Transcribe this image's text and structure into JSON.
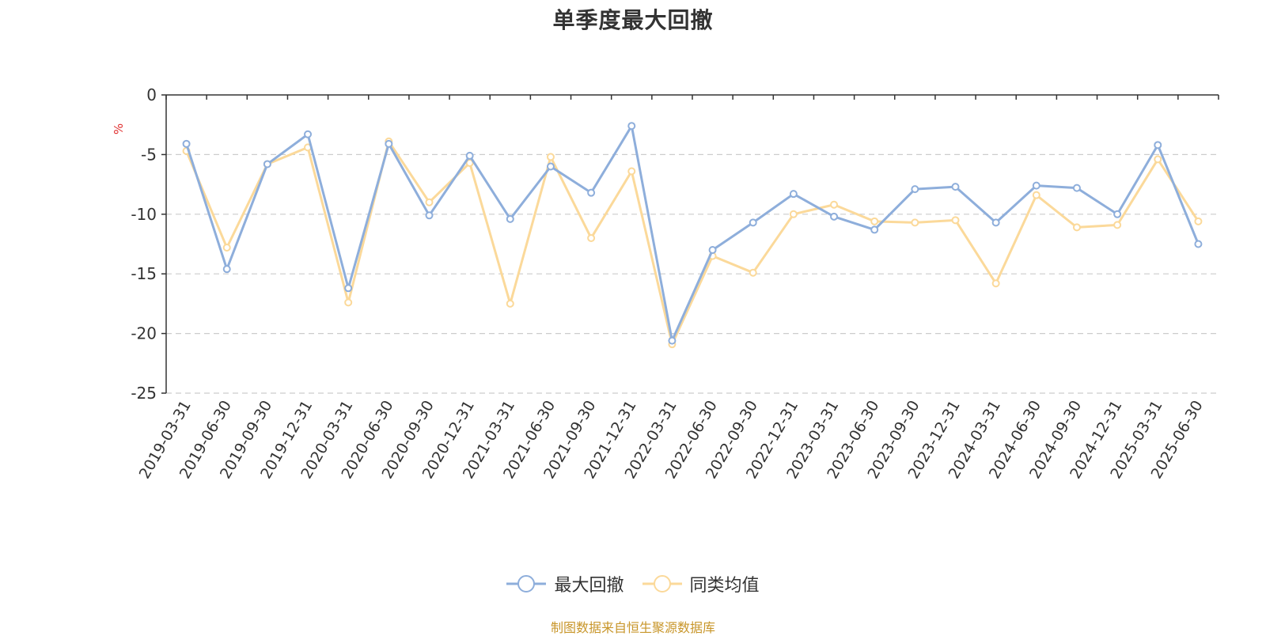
{
  "chart_data": {
    "type": "line",
    "title": "单季度最大回撤",
    "ylabel": "%",
    "ylim": [
      -25,
      0
    ],
    "yticks": [
      0,
      -5,
      -10,
      -15,
      -20,
      -25
    ],
    "grid": true,
    "legend_position": "bottom",
    "categories": [
      "2019-03-31",
      "2019-06-30",
      "2019-09-30",
      "2019-12-31",
      "2020-03-31",
      "2020-06-30",
      "2020-09-30",
      "2020-12-31",
      "2021-03-31",
      "2021-06-30",
      "2021-09-30",
      "2021-12-31",
      "2022-03-31",
      "2022-06-30",
      "2022-09-30",
      "2022-12-31",
      "2023-03-31",
      "2023-06-30",
      "2023-09-30",
      "2023-12-31",
      "2024-03-31",
      "2024-06-30",
      "2024-09-30",
      "2024-12-31",
      "2025-03-31",
      "2025-06-30"
    ],
    "series": [
      {
        "name": "最大回撤",
        "color": "#8eaedb",
        "values": [
          -4.1,
          -14.6,
          -5.8,
          -3.3,
          -16.2,
          -4.1,
          -10.1,
          -5.1,
          -10.4,
          -6.0,
          -8.2,
          -2.6,
          -20.6,
          -13.0,
          -10.7,
          -8.3,
          -10.2,
          -11.3,
          -7.9,
          -7.7,
          -10.7,
          -7.6,
          -7.8,
          -10.0,
          -4.2,
          -12.5
        ]
      },
      {
        "name": "同类均值",
        "color": "#fbd99a",
        "values": [
          -4.7,
          -12.8,
          -5.8,
          -4.4,
          -17.4,
          -3.9,
          -9.0,
          -5.7,
          -17.5,
          -5.2,
          -12.0,
          -6.4,
          -20.9,
          -13.5,
          -14.9,
          -10.0,
          -9.2,
          -10.6,
          -10.7,
          -10.5,
          -15.8,
          -8.4,
          -11.1,
          -10.9,
          -5.4,
          -10.6
        ]
      }
    ]
  },
  "footer": {
    "source": "制图数据来自恒生聚源数据库"
  }
}
